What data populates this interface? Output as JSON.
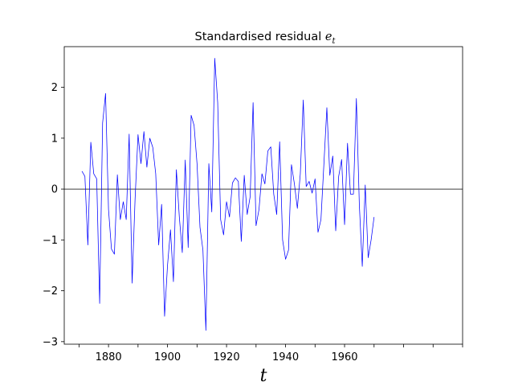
{
  "chart_data": {
    "type": "line",
    "title_main": "Standardised residual",
    "title_symbol": "e",
    "title_subscript": "t",
    "xlabel": "t",
    "ylabel": "",
    "xlim": [
      1865,
      2000
    ],
    "ylim": [
      -3.05,
      2.8
    ],
    "x_ticks": [
      1870,
      1880,
      1890,
      1900,
      1910,
      1920,
      1930,
      1940,
      1950,
      1960,
      1970,
      1980,
      1990,
      2000
    ],
    "x_tick_labels": [
      "",
      "1880",
      "",
      "1900",
      "",
      "1920",
      "",
      "1940",
      "",
      "1960",
      "",
      "",
      "",
      ""
    ],
    "y_ticks": [
      -3,
      -2,
      -1,
      0,
      1,
      2
    ],
    "y_tick_labels": [
      "−3",
      "−2",
      "−1",
      "0",
      "1",
      "2"
    ],
    "reference_line_y": 0,
    "grid": false,
    "series_color": "#0000ff",
    "reference_line_color": "#000000",
    "series": [
      {
        "x": [
          1871,
          1872,
          1873,
          1874,
          1875,
          1876,
          1877,
          1878,
          1879,
          1880,
          1881,
          1882,
          1883,
          1884,
          1885,
          1886,
          1887,
          1888,
          1889,
          1890,
          1891,
          1892,
          1893,
          1894,
          1895,
          1896,
          1897,
          1898,
          1899,
          1900,
          1901,
          1902,
          1903,
          1904,
          1905,
          1906,
          1907,
          1908,
          1909,
          1910,
          1911,
          1912,
          1913,
          1914,
          1915,
          1916,
          1917,
          1918,
          1919,
          1920,
          1921,
          1922,
          1923,
          1924,
          1925,
          1926,
          1927,
          1928,
          1929,
          1930,
          1931,
          1932,
          1933,
          1934,
          1935,
          1936,
          1937,
          1938,
          1939,
          1940,
          1941,
          1942,
          1943,
          1944,
          1945,
          1946,
          1947,
          1948,
          1949,
          1950,
          1951,
          1952,
          1953,
          1954,
          1955,
          1956,
          1957,
          1958,
          1959,
          1960,
          1961,
          1962,
          1963,
          1964,
          1965,
          1966,
          1967,
          1968,
          1969,
          1970
        ],
        "values": [
          0.35,
          0.25,
          -1.1,
          0.92,
          0.3,
          0.2,
          -2.25,
          1.3,
          1.88,
          -0.4,
          -1.18,
          -1.28,
          0.28,
          -0.6,
          -0.25,
          -0.6,
          1.08,
          -1.85,
          -0.2,
          1.07,
          0.5,
          1.13,
          0.43,
          1.0,
          0.82,
          0.3,
          -1.1,
          -0.3,
          -2.5,
          -1.5,
          -0.8,
          -1.82,
          0.38,
          -0.55,
          -1.25,
          0.57,
          -1.15,
          1.45,
          1.25,
          0.5,
          -0.75,
          -1.2,
          -2.78,
          0.5,
          -0.45,
          2.57,
          1.7,
          -0.6,
          -0.9,
          -0.25,
          -0.55,
          0.12,
          0.22,
          0.15,
          -1.03,
          0.27,
          -0.5,
          -0.15,
          1.7,
          -0.72,
          -0.4,
          0.3,
          0.1,
          0.75,
          0.83,
          -0.1,
          -0.5,
          0.93,
          -1.0,
          -1.38,
          -1.2,
          0.48,
          0.1,
          -0.38,
          0.3,
          1.75,
          0.05,
          0.15,
          -0.08,
          0.2,
          -0.85,
          -0.6,
          0.5,
          1.6,
          0.27,
          0.65,
          -0.82,
          0.25,
          0.58,
          -0.7,
          0.9,
          -0.1,
          -0.1,
          1.78,
          -0.3,
          -1.52,
          0.08,
          -1.35,
          -1.0,
          -0.55
        ]
      }
    ]
  }
}
